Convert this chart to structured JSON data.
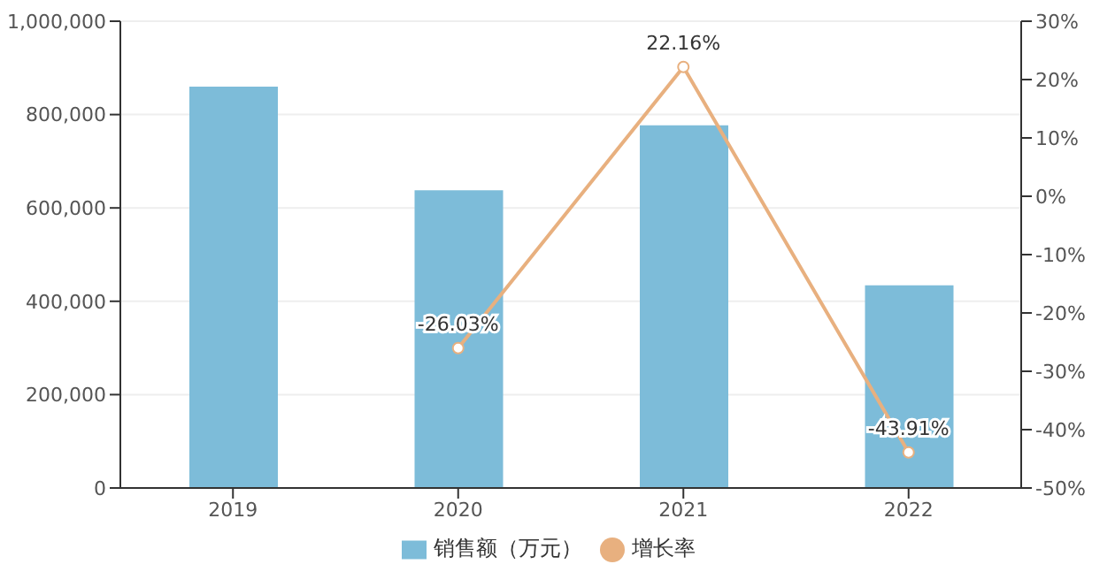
{
  "chart_data": {
    "type": "bar",
    "categories": [
      "2019",
      "2020",
      "2021",
      "2022"
    ],
    "series": [
      {
        "name": "销售额（万元）",
        "color": "#7dbcd9",
        "values": [
          860000,
          638000,
          777000,
          434000
        ]
      },
      {
        "name": "增长率",
        "type": "line",
        "axis": "y2",
        "color": "#e8b07f",
        "marker": "circle",
        "values": [
          null,
          -26.03,
          22.16,
          -43.91
        ],
        "value_labels": [
          null,
          "-26.03%",
          "22.16%",
          "-43.91%"
        ]
      }
    ],
    "ylim": [
      0,
      1000000
    ],
    "yticks": [
      0,
      {
        "value": 200000,
        "label": "200,000"
      },
      {
        "value": 400000,
        "label": "400,000"
      },
      {
        "value": 600000,
        "label": "600,000"
      },
      {
        "value": 800000,
        "label": "800,000"
      },
      {
        "value": 1000000,
        "label": "1,000,000"
      }
    ],
    "y2lim": [
      -50,
      30
    ],
    "y2ticks": [
      {
        "value": -50,
        "label": "-50%"
      },
      {
        "value": -40,
        "label": "-40%"
      },
      {
        "value": -30,
        "label": "-30%"
      },
      {
        "value": -20,
        "label": "-20%"
      },
      {
        "value": -10,
        "label": "-10%"
      },
      {
        "value": 0,
        "label": "0%"
      },
      {
        "value": 10,
        "label": "10%"
      },
      {
        "value": 20,
        "label": "20%"
      },
      {
        "value": 30,
        "label": "30%"
      }
    ],
    "grid": "y",
    "legend": "bottom"
  }
}
